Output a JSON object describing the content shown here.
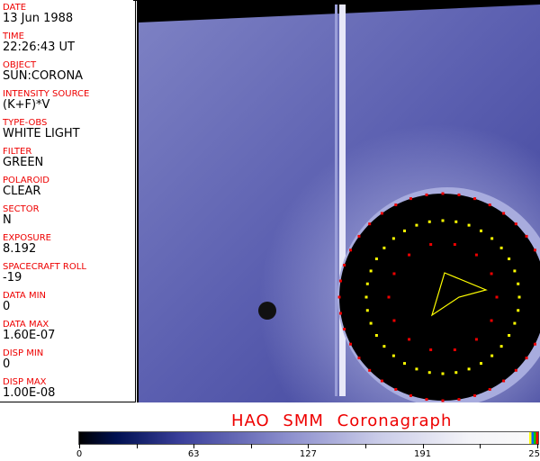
{
  "fields": [
    {
      "label": "DATE",
      "value": "13 Jun 1988"
    },
    {
      "label": "TIME",
      "value": "22:26:43 UT"
    },
    {
      "label": "OBJECT",
      "value": "SUN:CORONA"
    },
    {
      "label": "INTENSITY SOURCE",
      "value": "(K+F)*V"
    },
    {
      "label": "TYPE-OBS",
      "value": "WHITE LIGHT"
    },
    {
      "label": "FILTER",
      "value": "GREEN"
    },
    {
      "label": "POLAROID",
      "value": "CLEAR"
    },
    {
      "label": "SECTOR",
      "value": "N"
    },
    {
      "label": "EXPOSURE",
      "value": "8.192"
    },
    {
      "label": "SPACECRAFT ROLL",
      "value": "-19"
    },
    {
      "label": "DATA MIN",
      "value": "0"
    },
    {
      "label": "DATA MAX",
      "value": "1.60E-07"
    },
    {
      "label": "DISP MIN",
      "value": "0"
    },
    {
      "label": "DISP MAX",
      "value": "1.00E-08"
    }
  ],
  "title": "HAO  SMM Coronagraph",
  "colorbar": {
    "ticks": [
      "0",
      "63",
      "127",
      "191",
      "255"
    ]
  },
  "colors": {
    "label": "#e00000",
    "image_bg": "#3a3f9a"
  }
}
